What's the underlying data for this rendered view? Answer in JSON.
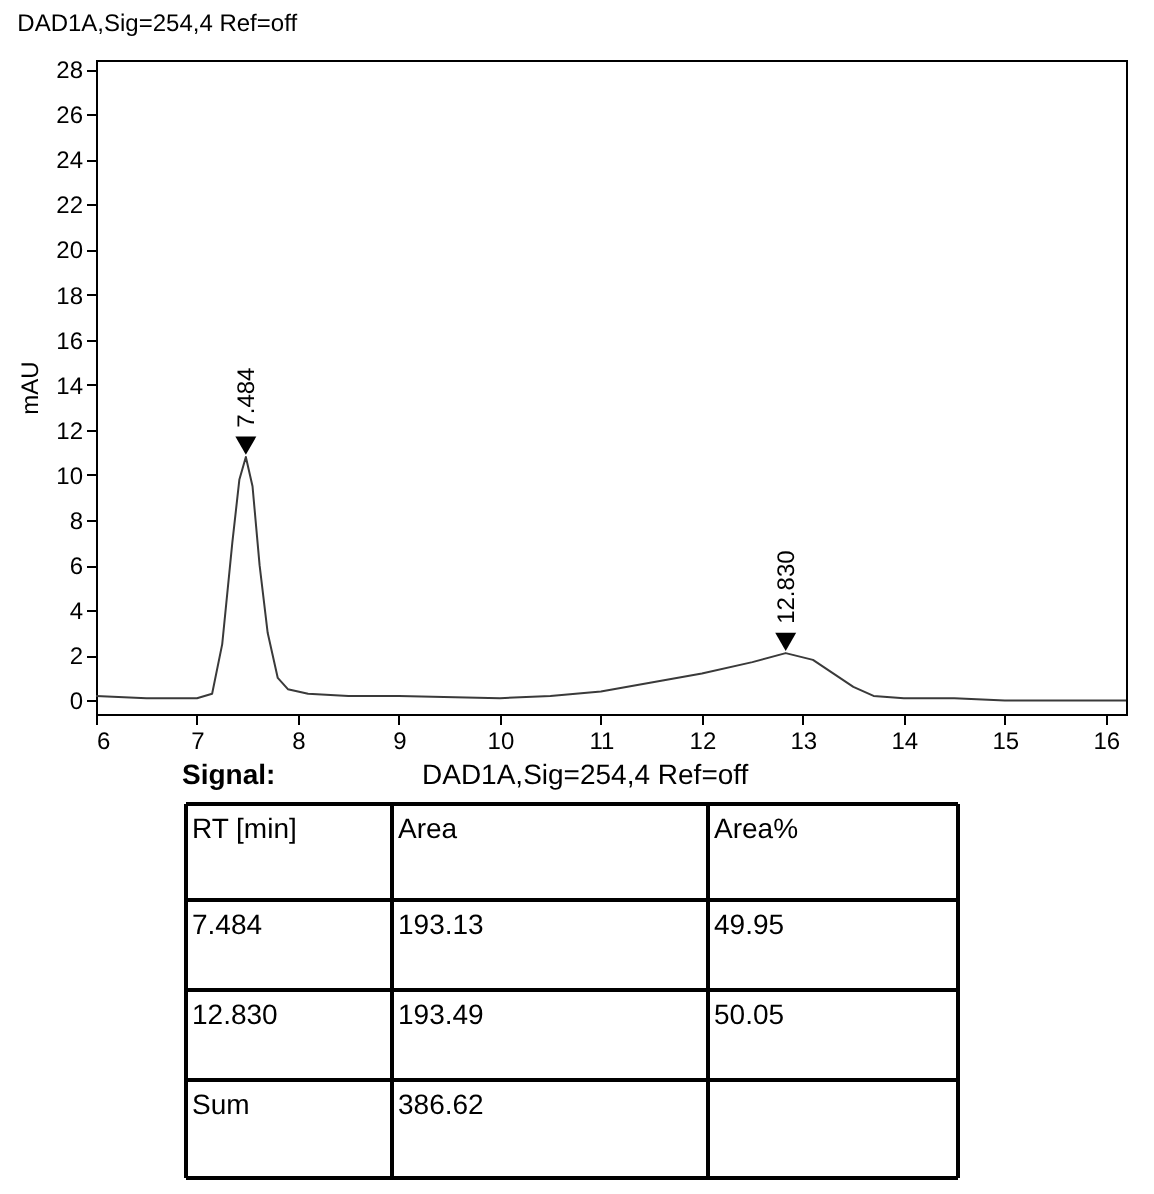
{
  "chart_data": {
    "type": "line",
    "title": "DAD1A,Sig=254,4  Ref=off",
    "ylabel": "mAU",
    "x": [
      6,
      6.5,
      7,
      7.15,
      7.25,
      7.35,
      7.42,
      7.484,
      7.55,
      7.62,
      7.7,
      7.8,
      7.9,
      8.1,
      8.5,
      9,
      10,
      10.5,
      11,
      11.5,
      12,
      12.5,
      12.83,
      13.1,
      13.3,
      13.5,
      13.7,
      14,
      14.5,
      15,
      16,
      16.2
    ],
    "series": [
      {
        "color": "#3a3a3a",
        "values": [
          0.2,
          0.1,
          0.1,
          0.3,
          2.5,
          7,
          9.8,
          10.8,
          9.5,
          6,
          3,
          1,
          0.5,
          0.3,
          0.2,
          0.2,
          0.1,
          0.2,
          0.4,
          0.8,
          1.2,
          1.7,
          2.1,
          1.8,
          1.2,
          0.6,
          0.2,
          0.1,
          0.1,
          0,
          0,
          0
        ]
      },
      {
        "type": "scatter",
        "marker": "triangle",
        "color": "#000000",
        "x": [
          7.484,
          12.83
        ],
        "values": [
          11.3,
          2.6
        ]
      }
    ],
    "xlim": [
      6,
      16.2
    ],
    "ylim": [
      -0.6,
      28.4
    ],
    "xticks": [
      6,
      7,
      8,
      9,
      10,
      11,
      12,
      13,
      14,
      15,
      16
    ],
    "yticks": [
      0,
      2,
      4,
      6,
      8,
      10,
      12,
      14,
      16,
      18,
      20,
      22,
      24,
      26,
      28
    ],
    "grid": false,
    "marker": "none",
    "line_style": "solid",
    "annotations": [
      {
        "text": "7.484",
        "x": 7.484,
        "y": 11.3
      },
      {
        "text": "12.830",
        "x": 12.83,
        "y": 2.6
      },
      "Signal:",
      "DAD1A,Sig=254,4  Ref=off",
      "RT [min]",
      "Area",
      "Area%",
      "7.484",
      "193.13",
      "49.95",
      "12.830",
      "193.49",
      "50.05",
      "Sum",
      "386.62"
    ]
  }
}
